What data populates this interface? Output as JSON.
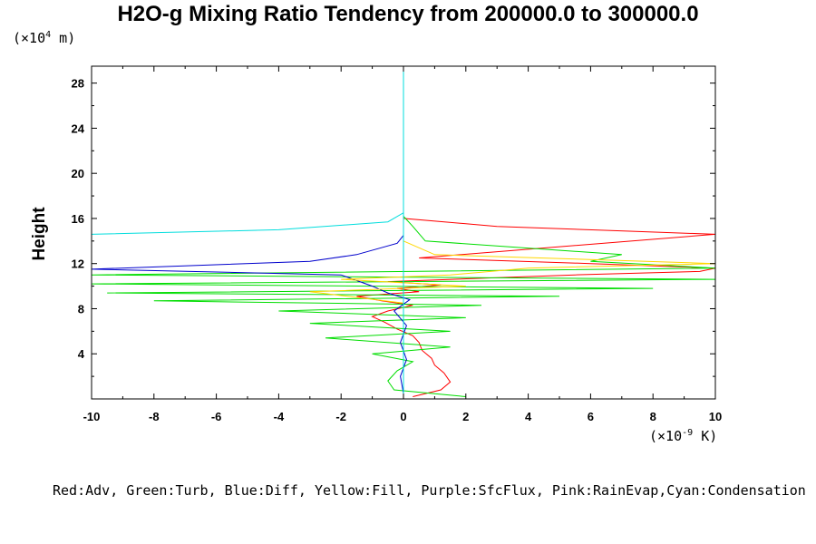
{
  "chart_data": {
    "type": "line",
    "title": "H2O-g Mixing Ratio Tendency from 200000.0 to 300000.0",
    "ylabel": "Height",
    "y_unit_prefix": "(×10",
    "y_unit_exp": "4",
    "y_unit_suffix": " m)",
    "x_unit_prefix": "(×10",
    "x_unit_exp": "-9",
    "x_unit_suffix": " K)",
    "xlim": [
      -10,
      10
    ],
    "ylim": [
      0,
      29.5
    ],
    "x_ticks": [
      -10,
      -8,
      -6,
      -4,
      -2,
      0,
      2,
      4,
      6,
      8,
      10
    ],
    "x_tick_labels": [
      "-10",
      "-8",
      "-6",
      "-4",
      "-2",
      "0",
      "2",
      "4",
      "6",
      "8",
      "10"
    ],
    "y_ticks": [
      4,
      8,
      12,
      16,
      20,
      24,
      28
    ],
    "y_tick_labels": [
      "4",
      "8",
      "12",
      "16",
      "20",
      "24",
      "28"
    ],
    "legend_text": "Red:Adv, Green:Turb, Blue:Diff, Yellow:Fill, Purple:SfcFlux, Pink:RainEvap,Cyan:Condensation",
    "series": [
      {
        "color": "#ff0000",
        "x": [
          0.3,
          1.2,
          1.5,
          1.3,
          1.0,
          0.9,
          0.6,
          0.5,
          0.3,
          -0.2,
          -0.6,
          -1.0,
          -0.5,
          0.3,
          -0.7,
          -1.5,
          0.5,
          -0.2,
          1.2,
          -0.5,
          2.5,
          5.5,
          9.5,
          10.0,
          6.0,
          0.5,
          10.0,
          3.0,
          0.0,
          0.0,
          0.0
        ],
        "y": [
          0.2,
          0.8,
          1.5,
          2.3,
          3.0,
          3.6,
          4.3,
          5.0,
          5.6,
          6.2,
          6.8,
          7.3,
          7.8,
          8.3,
          8.7,
          9.1,
          9.5,
          9.8,
          10.1,
          10.4,
          10.7,
          11.0,
          11.3,
          11.6,
          12.0,
          12.5,
          14.6,
          15.3,
          16.0,
          17.0,
          29.5
        ]
      },
      {
        "color": "#00dd00",
        "x": [
          2.0,
          -0.3,
          -0.5,
          -0.2,
          0.3,
          -1.0,
          1.5,
          -2.5,
          1.5,
          -3.0,
          2.0,
          -4.0,
          2.5,
          -8.0,
          5.0,
          -9.5,
          8.0,
          -10.0,
          10.0,
          -10.0,
          10.0,
          6.0,
          7.0,
          0.7,
          0.3,
          0.0,
          0.0
        ],
        "y": [
          0.2,
          0.8,
          1.6,
          2.5,
          3.3,
          4.0,
          4.6,
          5.4,
          6.0,
          6.7,
          7.2,
          7.8,
          8.3,
          8.7,
          9.1,
          9.4,
          9.8,
          10.2,
          10.6,
          11.0,
          11.6,
          12.2,
          12.8,
          14.0,
          15.3,
          16.2,
          17.0
        ]
      },
      {
        "color": "#0000cc",
        "x": [
          0.0,
          -0.1,
          0.1,
          -0.1,
          0.1,
          -0.3,
          0.2,
          -0.5,
          -1.0,
          -1.5,
          -2.0,
          -10.0,
          -3.0,
          -1.5,
          -0.2,
          0.0
        ],
        "y": [
          0.5,
          2.0,
          3.5,
          5.0,
          6.5,
          7.8,
          8.8,
          9.4,
          10.0,
          10.5,
          11.0,
          11.5,
          12.2,
          12.8,
          13.8,
          14.5
        ]
      },
      {
        "color": "#ffd700",
        "x": [
          0.0,
          -3.0,
          2.0,
          -2.0,
          1.5,
          4.0,
          10.0,
          1.0,
          0.0
        ],
        "y": [
          8.5,
          9.5,
          10.0,
          10.6,
          11.0,
          11.6,
          12.0,
          12.8,
          14.0
        ]
      },
      {
        "color": "#00dddd",
        "x": [
          0.0,
          0.0,
          0.0,
          0.0,
          -0.5,
          -4.0,
          -10.0
        ],
        "y": [
          0.0,
          10.0,
          14.0,
          16.5,
          15.7,
          15.0,
          14.6
        ]
      },
      {
        "color": "#00dddd",
        "x": [
          0.0,
          0.0
        ],
        "y": [
          16.5,
          29.5
        ]
      }
    ]
  }
}
